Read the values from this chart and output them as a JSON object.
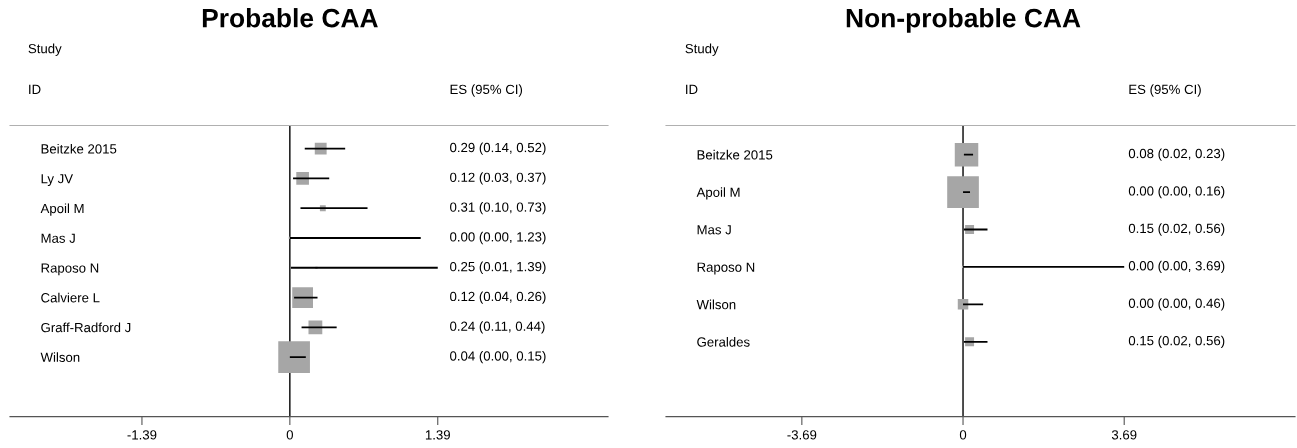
{
  "chart_data": [
    {
      "type": "bubble",
      "title": "Probable CAA",
      "orientation": "horizontal",
      "marker": "square",
      "grid": false,
      "legend": false,
      "annotations": [
        "Study",
        "ID",
        "ES (95% CI)",
        "0.29 (0.14, 0.52)",
        "0.12 (0.03, 0.37)",
        "0.31 (0.10, 0.73)",
        "0.00 (0.00, 1.23)",
        "0.25 (0.01, 1.39)",
        "0.12 (0.04, 0.26)",
        "0.24 (0.11, 0.44)",
        "0.04 (0.00, 0.15)"
      ],
      "categories": [
        "Beitzke 2015",
        "Ly JV",
        "Apoil M",
        "Mas J",
        "Raposo N",
        "Calviere L",
        "Graff-Radford J",
        "Wilson"
      ],
      "values": [
        0.29,
        0.12,
        0.31,
        0.0,
        0.25,
        0.12,
        0.24,
        0.04
      ],
      "errors": [
        [
          0.14,
          0.52
        ],
        [
          0.03,
          0.37
        ],
        [
          0.1,
          0.73
        ],
        [
          0.0,
          1.23
        ],
        [
          0.01,
          1.39
        ],
        [
          0.04,
          0.26
        ],
        [
          0.11,
          0.44
        ],
        [
          0.0,
          0.15
        ]
      ],
      "sizes": [
        0.14,
        0.16,
        0.034,
        0.005,
        0.005,
        0.43,
        0.19,
        1
      ],
      "color": "#a6a6a6",
      "ref_lines": [
        {
          "axis": "x",
          "value": 0,
          "color": "#000000"
        }
      ],
      "xlim": [
        -2.63,
        2.99
      ],
      "xticks": [
        -1.39,
        0,
        1.39
      ]
    },
    {
      "type": "bubble",
      "title": "Non-probable CAA",
      "orientation": "horizontal",
      "marker": "square",
      "grid": false,
      "legend": false,
      "annotations": [
        "Study",
        "ID",
        "ES (95% CI)",
        "0.08 (0.02, 0.23)",
        "0.00 (0.00, 0.16)",
        "0.15 (0.02, 0.56)",
        "0.00 (0.00, 3.69)",
        "0.00 (0.00, 0.46)",
        "0.15 (0.02, 0.56)"
      ],
      "categories": [
        "Beitzke 2015",
        "Apoil M",
        "Mas J",
        "Raposo N",
        "Wilson",
        "Geraldes"
      ],
      "values": [
        0.08,
        0.0,
        0.15,
        0.0,
        0.0,
        0.15
      ],
      "errors": [
        [
          0.02,
          0.23
        ],
        [
          0.0,
          0.16
        ],
        [
          0.02,
          0.56
        ],
        [
          0.0,
          3.69
        ],
        [
          0.0,
          0.46
        ],
        [
          0.02,
          0.56
        ]
      ],
      "sizes": [
        0.55,
        1,
        0.08,
        0.005,
        0.11,
        0.08
      ],
      "color": "#a6a6a6",
      "ref_lines": [
        {
          "axis": "x",
          "value": 0,
          "color": "#000000"
        }
      ],
      "xlim": [
        -6.8,
        7.6
      ],
      "xticks": [
        -3.69,
        0,
        3.69
      ]
    }
  ]
}
